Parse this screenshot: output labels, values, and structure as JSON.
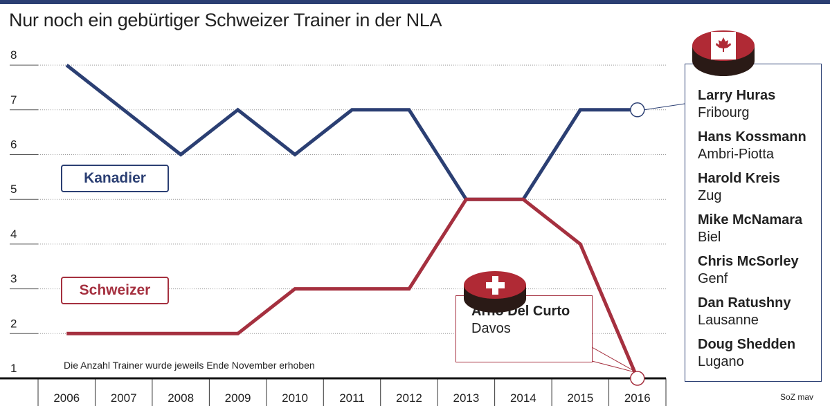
{
  "title": "Nur noch ein gebürtiger Schweizer Trainer in der NLA",
  "note": "Die Anzahl Trainer wurde jeweils Ende November erhoben",
  "credit": "SoZ mav",
  "colors": {
    "kanadier": "#2b3f73",
    "schweizer": "#a5303f"
  },
  "chart_data": {
    "type": "line",
    "title": "Nur noch ein gebürtiger Schweizer Trainer in der NLA",
    "x": [
      "2006",
      "2007",
      "2008",
      "2009",
      "2010",
      "2011",
      "2012",
      "2013",
      "2014",
      "2015",
      "2016"
    ],
    "yticks": [
      "1",
      "2",
      "3",
      "4",
      "5",
      "6",
      "7",
      "8"
    ],
    "ylim": [
      1,
      8
    ],
    "grid": true,
    "series": [
      {
        "name": "Kanadier",
        "values": [
          8,
          7,
          6,
          7,
          6,
          7,
          7,
          5,
          5,
          7,
          7
        ]
      },
      {
        "name": "Schweizer",
        "values": [
          2,
          2,
          2,
          2,
          3,
          3,
          3,
          5,
          5,
          4,
          1
        ]
      }
    ]
  },
  "canadian_coaches": [
    {
      "name": "Larry Huras",
      "club": "Fribourg"
    },
    {
      "name": "Hans Kossmann",
      "club": "Ambri-Piotta"
    },
    {
      "name": "Harold Kreis",
      "club": "Zug"
    },
    {
      "name": "Mike McNamara",
      "club": "Biel"
    },
    {
      "name": "Chris McSorley",
      "club": "Genf"
    },
    {
      "name": "Dan Ratushny",
      "club": "Lausanne"
    },
    {
      "name": "Doug Shedden",
      "club": "Lugano"
    }
  ],
  "swiss_coach": {
    "name": "Arno Del Curto",
    "club": "Davos"
  }
}
